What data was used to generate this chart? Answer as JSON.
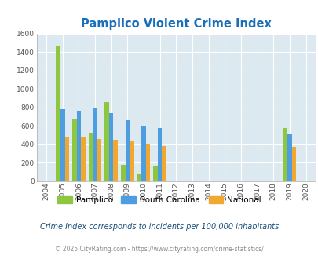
{
  "title": "Pamplico Violent Crime Index",
  "years": [
    2004,
    2005,
    2006,
    2007,
    2008,
    2009,
    2010,
    2011,
    2012,
    2013,
    2014,
    2015,
    2016,
    2017,
    2018,
    2019,
    2020
  ],
  "pamplico": [
    0,
    1460,
    670,
    530,
    855,
    175,
    80,
    170,
    0,
    0,
    0,
    0,
    0,
    0,
    0,
    575,
    0
  ],
  "south_carolina": [
    0,
    780,
    760,
    795,
    740,
    665,
    600,
    580,
    0,
    0,
    0,
    0,
    0,
    0,
    0,
    510,
    0
  ],
  "national": [
    0,
    475,
    475,
    460,
    450,
    435,
    400,
    380,
    0,
    0,
    0,
    0,
    0,
    0,
    0,
    375,
    0
  ],
  "pamplico_color": "#8dc63f",
  "sc_color": "#4e9de0",
  "national_color": "#f0a830",
  "bg_color": "#dce9f0",
  "title_color": "#1a6fba",
  "ylabel_max": 1600,
  "yticks": [
    0,
    200,
    400,
    600,
    800,
    1000,
    1200,
    1400,
    1600
  ],
  "footnote1": "Crime Index corresponds to incidents per 100,000 inhabitants",
  "footnote2": "© 2025 CityRating.com - https://www.cityrating.com/crime-statistics/",
  "bar_width": 0.27
}
